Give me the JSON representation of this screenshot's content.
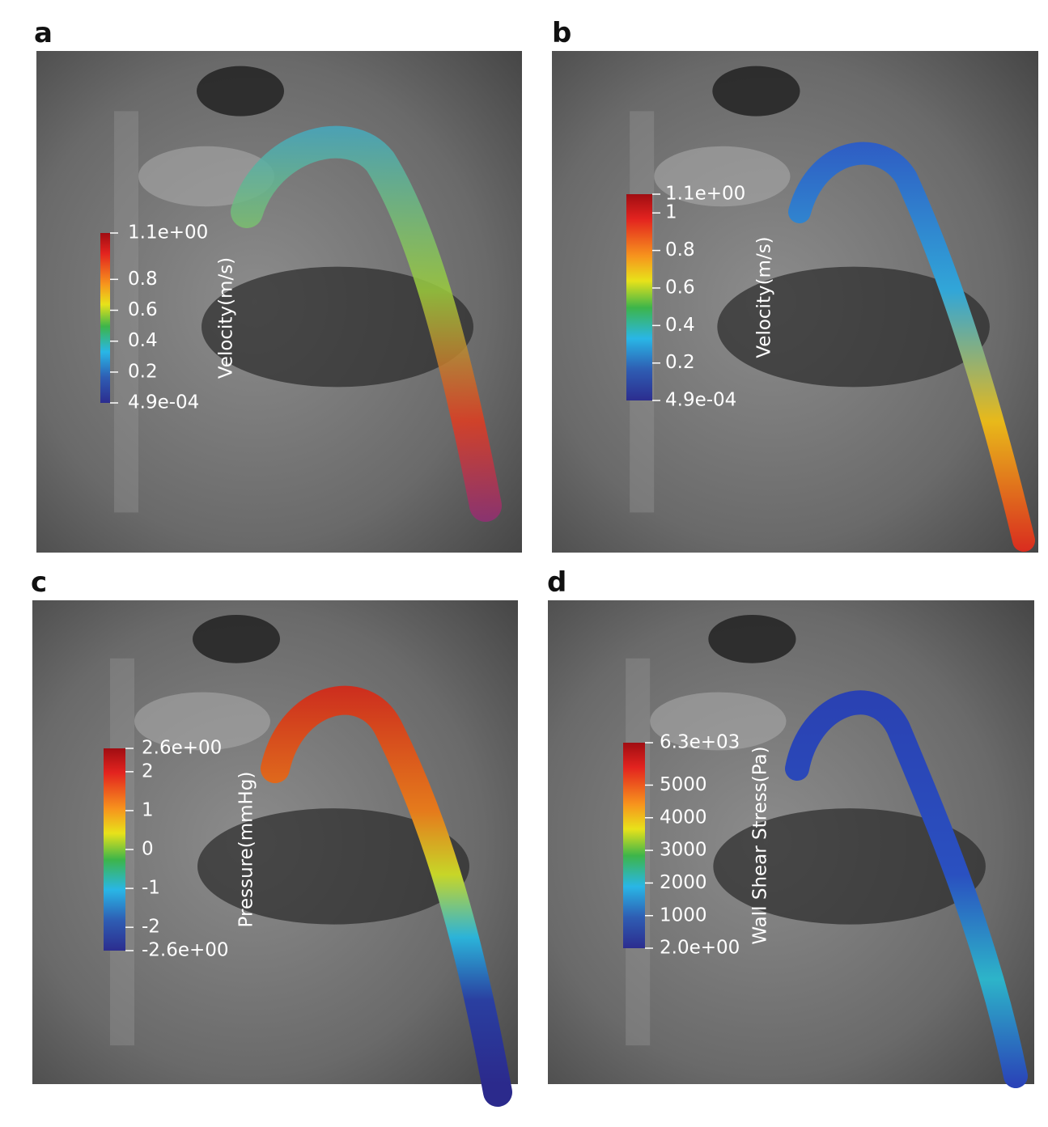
{
  "panels": [
    {
      "label": "a",
      "colorbar": {
        "title": "Velocity(m/s)",
        "range": [
          0.00049,
          1.1
        ],
        "ticks": [
          {
            "value": 1.1,
            "label": "1.1e+00"
          },
          0.8,
          0.6,
          0.4,
          0.2,
          {
            "value": 0.00049,
            "label": "4.9e-04"
          }
        ]
      }
    },
    {
      "label": "b",
      "colorbar": {
        "title": "Velocity(m/s)",
        "range": [
          0.00049,
          1.1
        ],
        "ticks": [
          {
            "value": 1.1,
            "label": "1.1e+00"
          },
          1,
          0.8,
          0.6,
          0.4,
          0.2,
          {
            "value": 0.00049,
            "label": "4.9e-04"
          }
        ]
      }
    },
    {
      "label": "c",
      "colorbar": {
        "title": "Pressure(mmHg)",
        "range": [
          -2.6,
          2.6
        ],
        "ticks": [
          {
            "value": 2.6,
            "label": "2.6e+00"
          },
          2,
          1,
          0,
          -1,
          -2,
          {
            "value": -2.6,
            "label": "-2.6e+00"
          }
        ]
      }
    },
    {
      "label": "d",
      "colorbar": {
        "title": "Wall Shear Stress(Pa)",
        "range": [
          2,
          6300
        ],
        "ticks": [
          {
            "value": 6300,
            "label": "6.3e+03"
          },
          5000,
          4000,
          3000,
          2000,
          1000,
          {
            "value": 2,
            "label": "2.0e+00"
          }
        ]
      }
    }
  ]
}
